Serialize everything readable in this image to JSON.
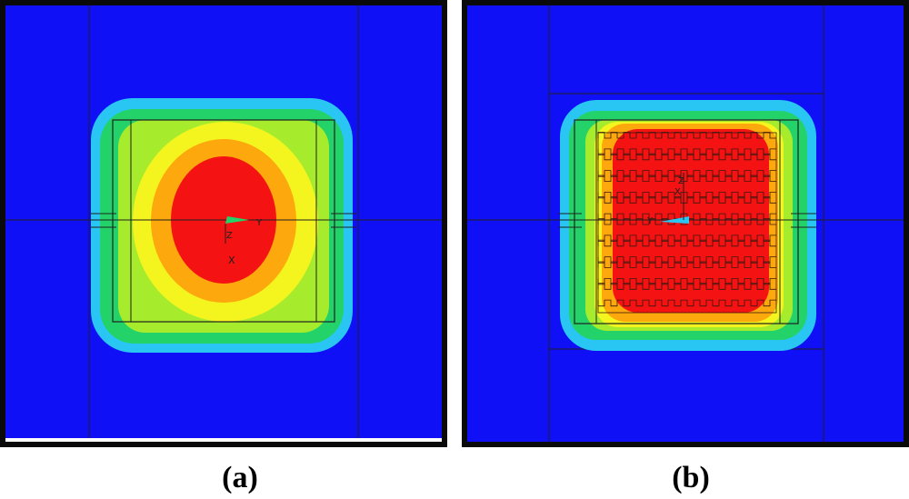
{
  "figure": {
    "panels": [
      {
        "id": "a",
        "caption": "(a)",
        "axis_labels": {
          "y": "Y",
          "z": "Z",
          "x": "X"
        }
      },
      {
        "id": "b",
        "caption": "(b)",
        "axis_labels": {
          "y": "Y",
          "z": "Z",
          "x": "X"
        }
      }
    ],
    "colors": {
      "background": "#1010f6",
      "cyan": "#29c6f4",
      "green": "#23d36a",
      "lime": "#a6ec2c",
      "yellow": "#f4f51e",
      "orange": "#fda80d",
      "red": "#f41212",
      "outline": "#202020"
    }
  }
}
